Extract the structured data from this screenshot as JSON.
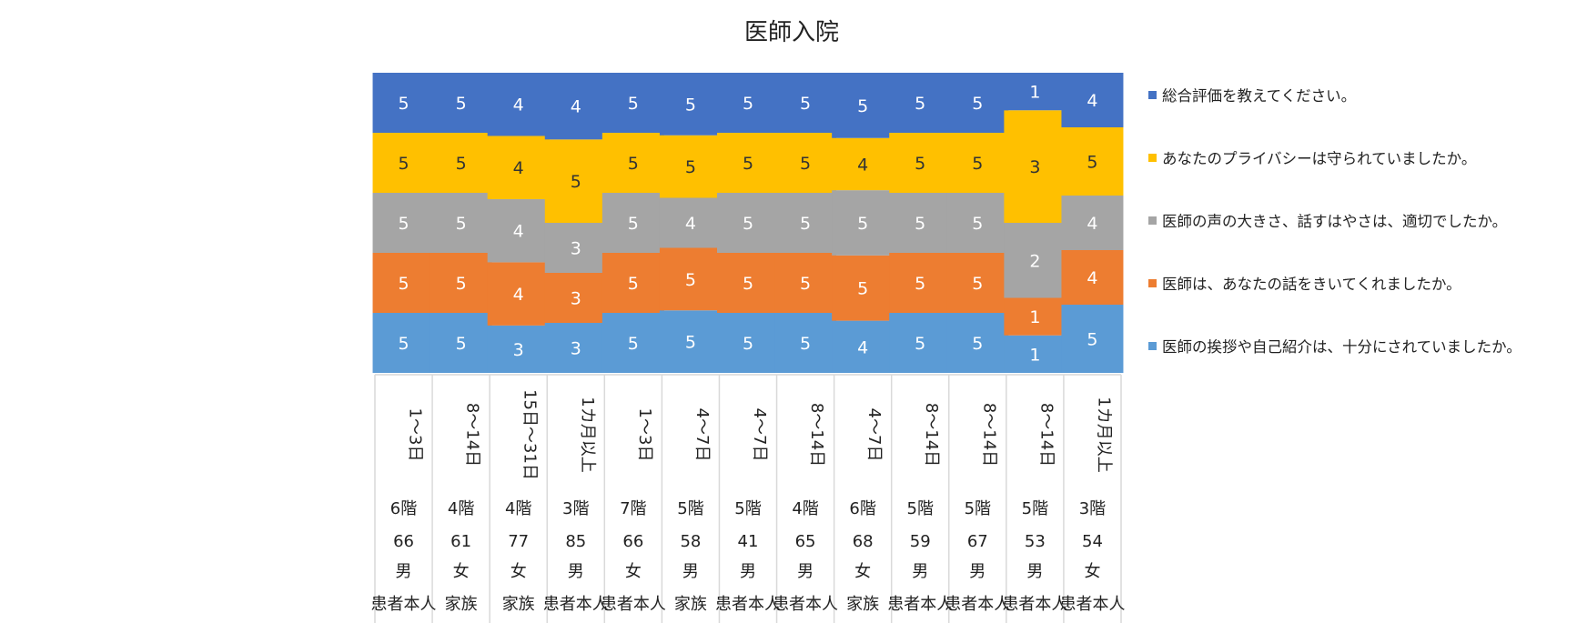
{
  "chart_data": {
    "type": "bar",
    "stacked": true,
    "title": "医師入院",
    "legend_position": "right",
    "grid": false,
    "categories": [
      {
        "stay": "1～3日",
        "floor": "6階",
        "age": "66",
        "sex": "男",
        "respondent": "患者本人"
      },
      {
        "stay": "8～14日",
        "floor": "4階",
        "age": "61",
        "sex": "女",
        "respondent": "家族"
      },
      {
        "stay": "15日～31日",
        "floor": "4階",
        "age": "77",
        "sex": "女",
        "respondent": "家族"
      },
      {
        "stay": "1カ月以上",
        "floor": "3階",
        "age": "85",
        "sex": "男",
        "respondent": "患者本人"
      },
      {
        "stay": "1～3日",
        "floor": "7階",
        "age": "66",
        "sex": "女",
        "respondent": "患者本人"
      },
      {
        "stay": "4～7日",
        "floor": "5階",
        "age": "58",
        "sex": "男",
        "respondent": "家族"
      },
      {
        "stay": "4～7日",
        "floor": "5階",
        "age": "41",
        "sex": "男",
        "respondent": "患者本人"
      },
      {
        "stay": "8～14日",
        "floor": "4階",
        "age": "65",
        "sex": "男",
        "respondent": "患者本人"
      },
      {
        "stay": "4～7日",
        "floor": "6階",
        "age": "68",
        "sex": "女",
        "respondent": "家族"
      },
      {
        "stay": "8～14日",
        "floor": "5階",
        "age": "59",
        "sex": "男",
        "respondent": "患者本人"
      },
      {
        "stay": "8～14日",
        "floor": "5階",
        "age": "67",
        "sex": "男",
        "respondent": "患者本人"
      },
      {
        "stay": "8～14日",
        "floor": "5階",
        "age": "53",
        "sex": "男",
        "respondent": "患者本人"
      },
      {
        "stay": "1カ月以上",
        "floor": "3階",
        "age": "54",
        "sex": "女",
        "respondent": "患者本人"
      }
    ],
    "series": [
      {
        "name": "医師の挨拶や自己紹介は、十分にされていましたか。",
        "color": "#5B9BD5",
        "values": [
          5,
          5,
          3,
          3,
          5,
          5,
          5,
          5,
          4,
          5,
          5,
          1,
          5
        ]
      },
      {
        "name": "医師は、あなたの話をきいてくれましたか。",
        "color": "#ED7D31",
        "values": [
          5,
          5,
          4,
          3,
          5,
          5,
          5,
          5,
          5,
          5,
          5,
          1,
          4
        ]
      },
      {
        "name": "医師の声の大きさ、話すはやさは、適切でしたか。",
        "color": "#A5A5A5",
        "values": [
          5,
          5,
          4,
          3,
          5,
          4,
          5,
          5,
          5,
          5,
          5,
          2,
          4
        ]
      },
      {
        "name": "あなたのプライバシーは守られていましたか。",
        "color": "#FFC000",
        "values": [
          5,
          5,
          4,
          5,
          5,
          5,
          5,
          5,
          4,
          5,
          5,
          3,
          5
        ]
      },
      {
        "name": "総合評価を教えてください。",
        "color": "#4472C4",
        "values": [
          5,
          5,
          4,
          4,
          5,
          5,
          5,
          5,
          5,
          5,
          5,
          1,
          4
        ]
      }
    ],
    "legend_order": [
      4,
      3,
      2,
      1,
      0
    ]
  }
}
